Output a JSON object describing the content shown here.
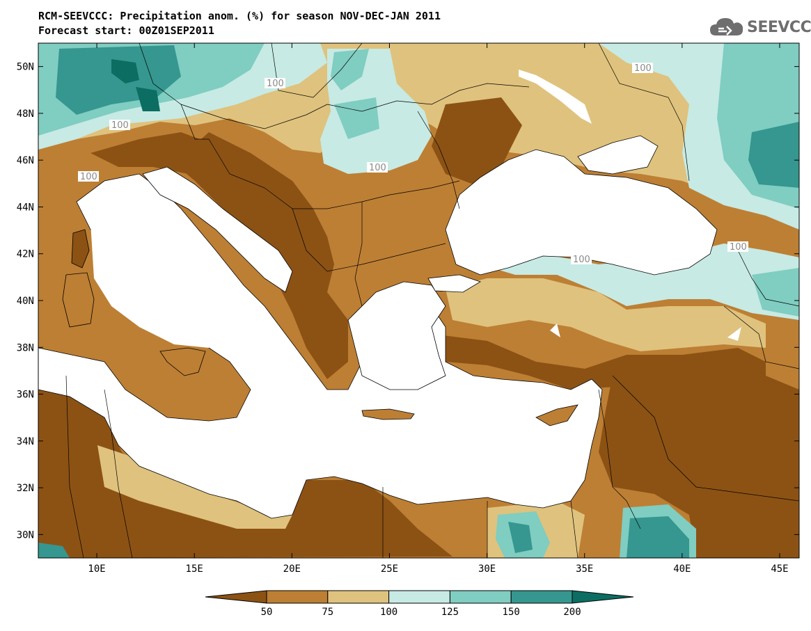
{
  "title": {
    "line1": "RCM-SEEVCCC: Precipitation anom. (%) for season NOV-DEC-JAN 2011",
    "line2": "Forecast start: 00Z01SEP2011"
  },
  "logo": {
    "text": "SEEVCCC",
    "icon": "cloud-logo-icon"
  },
  "map": {
    "lon_range": [
      7,
      46
    ],
    "lat_range": [
      29,
      51
    ],
    "lat_ticks": [
      {
        "value": 50,
        "label": "50N"
      },
      {
        "value": 48,
        "label": "48N"
      },
      {
        "value": 46,
        "label": "46N"
      },
      {
        "value": 44,
        "label": "44N"
      },
      {
        "value": 42,
        "label": "42N"
      },
      {
        "value": 40,
        "label": "40N"
      },
      {
        "value": 38,
        "label": "38N"
      },
      {
        "value": 36,
        "label": "36N"
      },
      {
        "value": 34,
        "label": "34N"
      },
      {
        "value": 32,
        "label": "32N"
      },
      {
        "value": 30,
        "label": "30N"
      }
    ],
    "lon_ticks": [
      {
        "value": 10,
        "label": "10E"
      },
      {
        "value": 15,
        "label": "15E"
      },
      {
        "value": 20,
        "label": "20E"
      },
      {
        "value": 25,
        "label": "25E"
      },
      {
        "value": 30,
        "label": "30E"
      },
      {
        "value": 35,
        "label": "35E"
      },
      {
        "value": 40,
        "label": "40E"
      },
      {
        "value": 45,
        "label": "45E"
      }
    ],
    "contour_labels": [
      "100",
      "100",
      "100",
      "100",
      "100",
      "100",
      "100"
    ]
  },
  "colorbar": {
    "labels": [
      "50",
      "75",
      "100",
      "125",
      "150",
      "200"
    ],
    "colors": [
      "#8c5214",
      "#bd7f34",
      "#dfc27d",
      "#c7eae4",
      "#80cdc1",
      "#35978f",
      "#0c6e62"
    ]
  },
  "colors": {
    "sea": "#ffffff",
    "dry_strong": "#8c5214",
    "dry": "#bd7f34",
    "dry_light": "#dfc27d",
    "wet_light": "#c7eae4",
    "wet": "#80cdc1",
    "wet_strong": "#35978f",
    "wet_extreme": "#0c6e62"
  }
}
